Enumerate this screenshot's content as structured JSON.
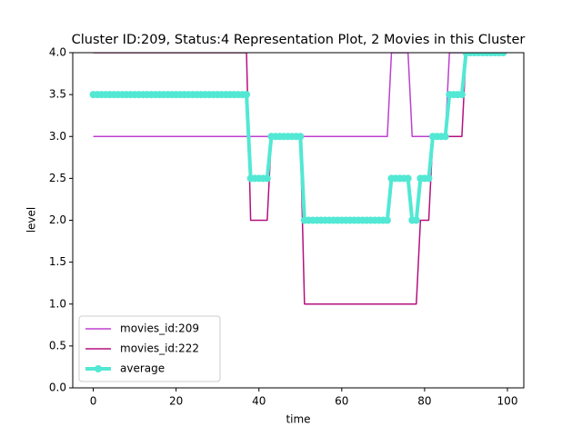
{
  "chart_data": {
    "type": "line",
    "title": "Cluster ID:209, Status:4 Representation Plot, 2 Movies in this Cluster",
    "x_label": "time",
    "y_label": "level",
    "x": [
      0,
      1,
      2,
      3,
      4,
      5,
      6,
      7,
      8,
      9,
      10,
      11,
      12,
      13,
      14,
      15,
      16,
      17,
      18,
      19,
      20,
      21,
      22,
      23,
      24,
      25,
      26,
      27,
      28,
      29,
      30,
      31,
      32,
      33,
      34,
      35,
      36,
      37,
      38,
      39,
      40,
      41,
      42,
      43,
      44,
      45,
      46,
      47,
      48,
      49,
      50,
      51,
      52,
      53,
      54,
      55,
      56,
      57,
      58,
      59,
      60,
      61,
      62,
      63,
      64,
      65,
      66,
      67,
      68,
      69,
      70,
      71,
      72,
      73,
      74,
      75,
      76,
      77,
      78,
      79,
      80,
      81,
      82,
      83,
      84,
      85,
      86,
      87,
      88,
      89,
      90,
      91,
      92,
      93,
      94,
      95,
      96,
      97,
      98,
      99
    ],
    "series": [
      {
        "name": "movies_id:209",
        "color": "#bf3fd1",
        "width": 1.5,
        "marker": false,
        "values": [
          3,
          3,
          3,
          3,
          3,
          3,
          3,
          3,
          3,
          3,
          3,
          3,
          3,
          3,
          3,
          3,
          3,
          3,
          3,
          3,
          3,
          3,
          3,
          3,
          3,
          3,
          3,
          3,
          3,
          3,
          3,
          3,
          3,
          3,
          3,
          3,
          3,
          3,
          3,
          3,
          3,
          3,
          3,
          3,
          3,
          3,
          3,
          3,
          3,
          3,
          3,
          3,
          3,
          3,
          3,
          3,
          3,
          3,
          3,
          3,
          3,
          3,
          3,
          3,
          3,
          3,
          3,
          3,
          3,
          3,
          3,
          3,
          4,
          4,
          4,
          4,
          4,
          3,
          3,
          3,
          3,
          3,
          3,
          3,
          3,
          3,
          4,
          4,
          4,
          4,
          4,
          4,
          4,
          4,
          4,
          4,
          4,
          4,
          4,
          4
        ]
      },
      {
        "name": "movies_id:222",
        "color": "#b5107e",
        "width": 1.5,
        "marker": false,
        "values": [
          4,
          4,
          4,
          4,
          4,
          4,
          4,
          4,
          4,
          4,
          4,
          4,
          4,
          4,
          4,
          4,
          4,
          4,
          4,
          4,
          4,
          4,
          4,
          4,
          4,
          4,
          4,
          4,
          4,
          4,
          4,
          4,
          4,
          4,
          4,
          4,
          4,
          4,
          2,
          2,
          2,
          2,
          2,
          3,
          3,
          3,
          3,
          3,
          3,
          3,
          3,
          1,
          1,
          1,
          1,
          1,
          1,
          1,
          1,
          1,
          1,
          1,
          1,
          1,
          1,
          1,
          1,
          1,
          1,
          1,
          1,
          1,
          1,
          1,
          1,
          1,
          1,
          1,
          1,
          2,
          2,
          2,
          3,
          3,
          3,
          3,
          3,
          3,
          3,
          3,
          4,
          4,
          4,
          4,
          4,
          4,
          4,
          4,
          4,
          4
        ]
      },
      {
        "name": "average",
        "color": "#52e8d4",
        "width": 4,
        "marker": true,
        "values": [
          3.5,
          3.5,
          3.5,
          3.5,
          3.5,
          3.5,
          3.5,
          3.5,
          3.5,
          3.5,
          3.5,
          3.5,
          3.5,
          3.5,
          3.5,
          3.5,
          3.5,
          3.5,
          3.5,
          3.5,
          3.5,
          3.5,
          3.5,
          3.5,
          3.5,
          3.5,
          3.5,
          3.5,
          3.5,
          3.5,
          3.5,
          3.5,
          3.5,
          3.5,
          3.5,
          3.5,
          3.5,
          3.5,
          2.5,
          2.5,
          2.5,
          2.5,
          2.5,
          3,
          3,
          3,
          3,
          3,
          3,
          3,
          3,
          2,
          2,
          2,
          2,
          2,
          2,
          2,
          2,
          2,
          2,
          2,
          2,
          2,
          2,
          2,
          2,
          2,
          2,
          2,
          2,
          2,
          2.5,
          2.5,
          2.5,
          2.5,
          2.5,
          2,
          2,
          2.5,
          2.5,
          2.5,
          3,
          3,
          3,
          3,
          3.5,
          3.5,
          3.5,
          3.5,
          4,
          4,
          4,
          4,
          4,
          4,
          4,
          4,
          4,
          4
        ]
      }
    ],
    "xlim": [
      -4.95,
      103.95
    ],
    "ylim": [
      0,
      4
    ],
    "xticks": [
      0,
      20,
      40,
      60,
      80,
      100
    ],
    "yticks": [
      {
        "value": 0,
        "label": "0.0"
      },
      {
        "value": 0.5,
        "label": "0.5"
      },
      {
        "value": 1,
        "label": "1.0"
      },
      {
        "value": 1.5,
        "label": "1.5"
      },
      {
        "value": 2,
        "label": "2.0"
      },
      {
        "value": 2.5,
        "label": "2.5"
      },
      {
        "value": 3,
        "label": "3.0"
      },
      {
        "value": 3.5,
        "label": "3.5"
      },
      {
        "value": 4,
        "label": "4.0"
      }
    ],
    "legend": "lower left"
  }
}
